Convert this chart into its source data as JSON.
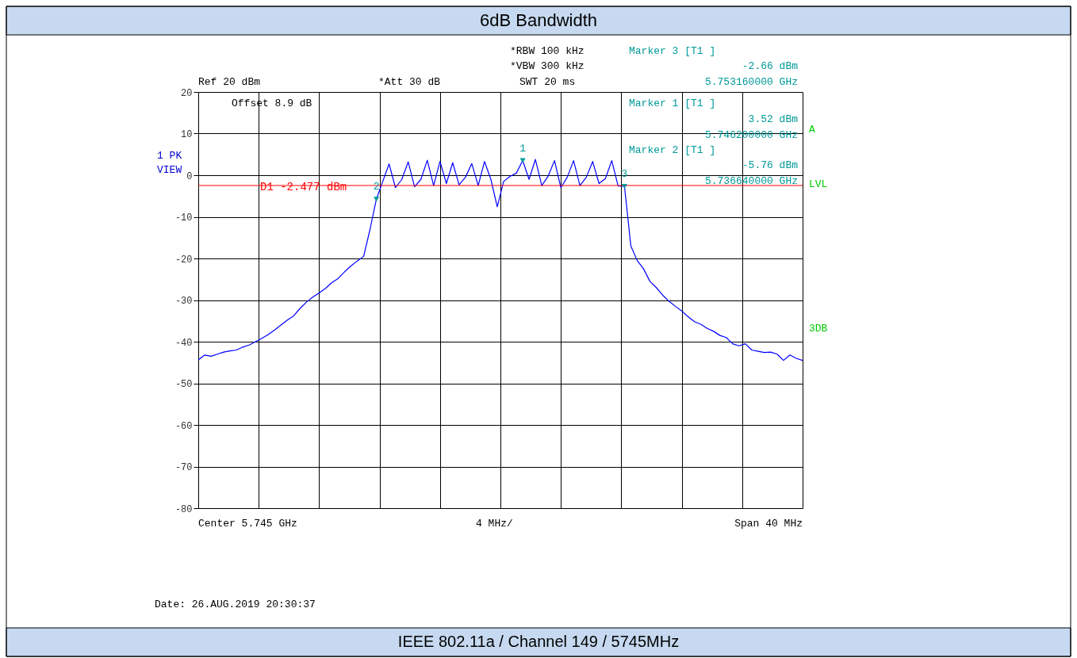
{
  "chart_data": {
    "type": "line",
    "title": "6dB Bandwidth",
    "categories": [
      null,
      null,
      null,
      null,
      null,
      null,
      null,
      null,
      null,
      null,
      null,
      null,
      null,
      null,
      null,
      null,
      null,
      null,
      null,
      null,
      null,
      null,
      null,
      null,
      null,
      null,
      null,
      null,
      null,
      null,
      null,
      null,
      null,
      null,
      null,
      null,
      null,
      null,
      null,
      null,
      null,
      null,
      null,
      null,
      null,
      null,
      null,
      null,
      null,
      null,
      null,
      null,
      null,
      null,
      null,
      null,
      null,
      null,
      null,
      null,
      null,
      null,
      null,
      null,
      null,
      null,
      null,
      null,
      null,
      null,
      null,
      null,
      null,
      null,
      null,
      null,
      null,
      null,
      null,
      null,
      null,
      null,
      null,
      null,
      null,
      null,
      null,
      null,
      null,
      null,
      null,
      null,
      null,
      null,
      null,
      null
    ],
    "series": [
      {
        "color": "#0000ff",
        "values": [
          -44.4,
          -43.2,
          -43.5,
          -43,
          -42.5,
          -42.2,
          -42,
          -41.3,
          -40.8,
          -40,
          -39.2,
          -38.3,
          -37.2,
          -36,
          -34.8,
          -33.8,
          -32,
          -30.5,
          -29.3,
          -28.3,
          -27.2,
          -25.8,
          -24.8,
          -23.2,
          -21.8,
          -20.6,
          -19.5,
          -13,
          -5.76,
          -1.5,
          2.7,
          -3,
          -1,
          3.2,
          -2.8,
          -1,
          3.6,
          -2.5,
          3.3,
          -2,
          3,
          -2.3,
          -0.5,
          2.8,
          -2.5,
          3.3,
          -1,
          -7.6,
          -1.5,
          -0.3,
          0.5,
          3.52,
          -1,
          3.8,
          -2.5,
          -0.2,
          3.5,
          -3,
          -0.5,
          3.5,
          -2.5,
          -0.5,
          3.3,
          -2,
          -0.8,
          3.5,
          -2.6,
          -2.66,
          -17,
          -20.5,
          -22.5,
          -25.5,
          -27,
          -28.8,
          -30.3,
          -31.5,
          -32.6,
          -34,
          -35.2,
          -35.8,
          -36.8,
          -37.5,
          -38.5,
          -39,
          -40.5,
          -41,
          -40.5,
          -42,
          -42.3,
          -42.6,
          -42.5,
          -43,
          -44.5,
          -43.2,
          -44,
          -44.5
        ]
      }
    ],
    "ylim": [
      -80,
      20
    ],
    "yticks": [
      -80,
      -70,
      -60,
      -50,
      -40,
      -30,
      -20,
      -10,
      0,
      10,
      20
    ],
    "tick_labels": "y",
    "grid": true,
    "legend": false,
    "marker": "none",
    "line_style": "solid",
    "ref_lines": [
      {
        "axis": "y",
        "value": -2.477,
        "label": "D1 -2.477 dBm",
        "color": "#ff0000"
      }
    ],
    "annotations": [
      "*RBW 100 kHz",
      "*VBW 300 kHz",
      "SWT 20 ms",
      "Ref 20 dBm",
      "*Att 30 dB",
      "Marker 3 [T1 ]",
      "-2.66 dBm",
      "5.753160000 GHz",
      "Offset 8.9 dB",
      "Marker 1 [T1 ]",
      "3.52 dBm",
      "5.746200000 GHz",
      "Marker 2 [T1 ]",
      "-5.76 dBm",
      "5.736640000 GHz",
      "Center 5.745 GHz",
      "4 MHz/",
      "Span 40 MHz",
      "Date: 26.AUG.2019  20:30:37",
      "A",
      "LVL",
      "3DB",
      "1 PK",
      "VIEW",
      "IEEE 802.11a / Channel 149 / 5745MHz",
      {
        "text": "1",
        "y": 3.52
      },
      {
        "text": "2",
        "y": -5.76
      },
      {
        "text": "3",
        "y": -2.66
      }
    ]
  }
}
